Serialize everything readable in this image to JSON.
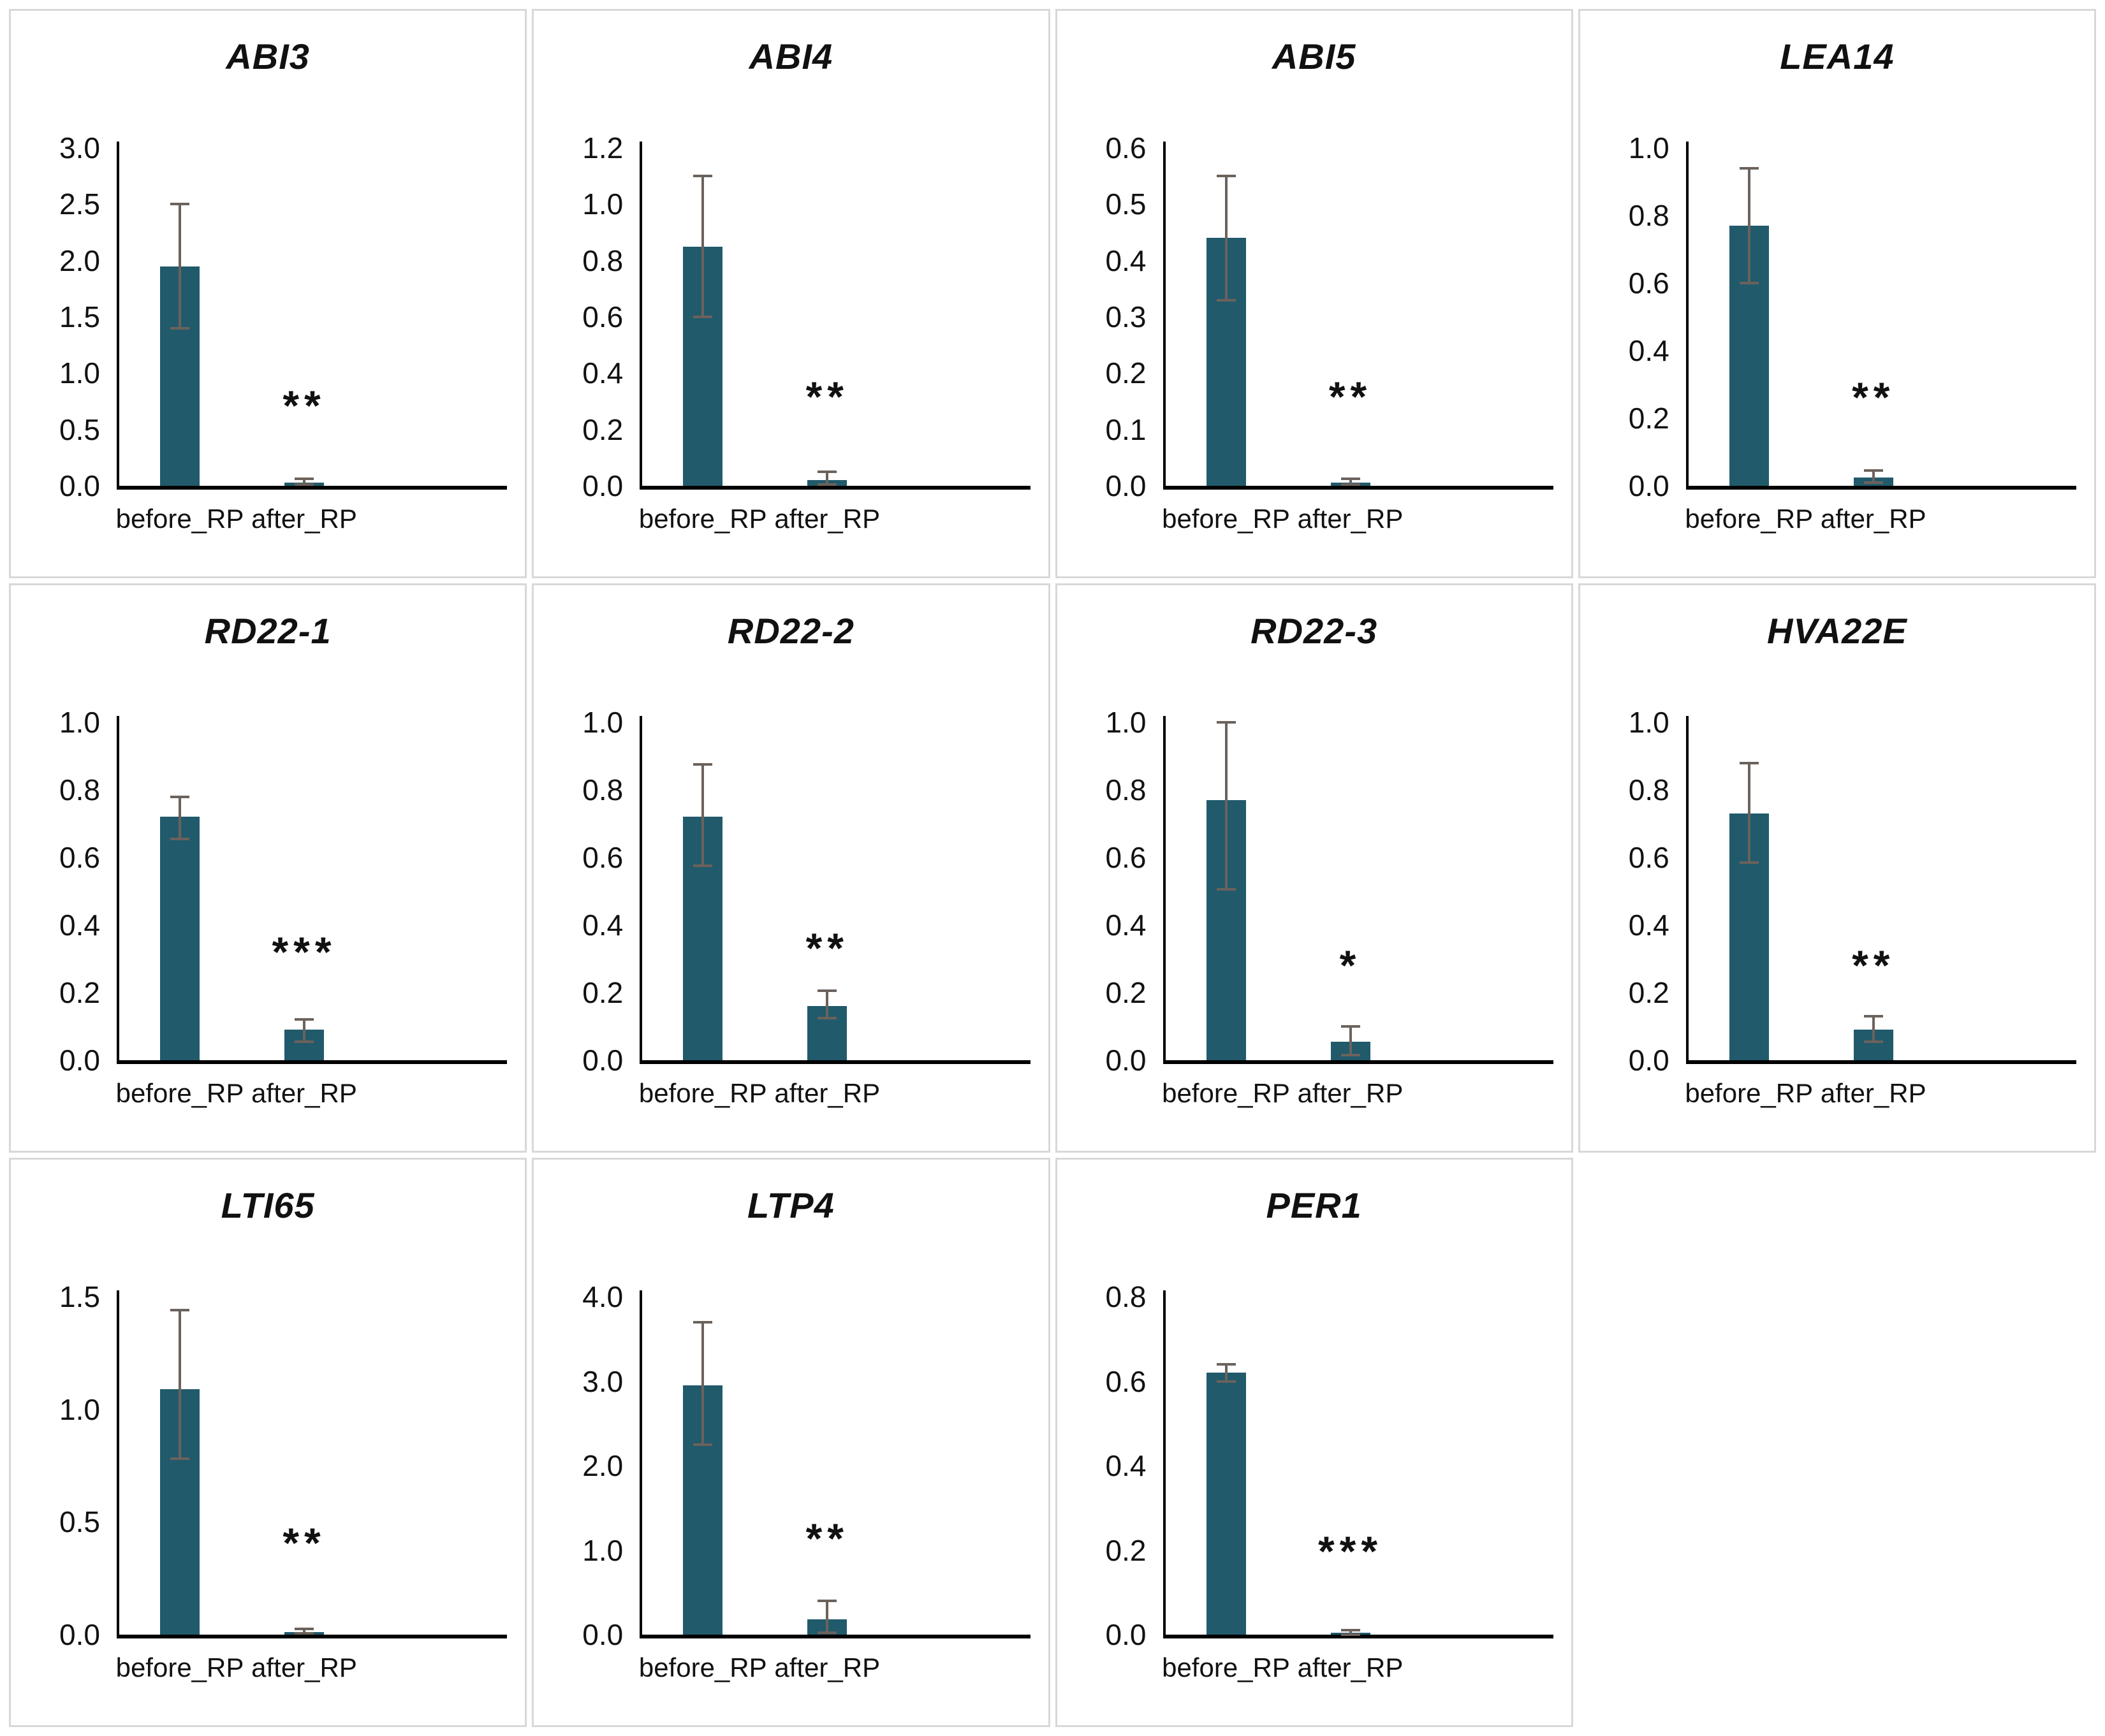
{
  "colors": {
    "bar": "#215a6b",
    "error_bar": "#6b625c",
    "axis": "#000000",
    "panel_border": "#d8d8d8",
    "text": "#111111"
  },
  "chart_data": [
    {
      "type": "bar",
      "title": "ABI3",
      "categories": [
        "before_RP",
        "after_RP"
      ],
      "values": [
        1.95,
        0.03
      ],
      "error_top": [
        2.5,
        0.06
      ],
      "error_bottom": [
        1.4,
        0.01
      ],
      "ylim": [
        0,
        3.0
      ],
      "yticks": [
        "0.0",
        "0.5",
        "1.0",
        "1.5",
        "2.0",
        "2.5",
        "3.0"
      ],
      "sig": "**",
      "sig_label_y": 0.5,
      "grid": "off",
      "legend": "none"
    },
    {
      "type": "bar",
      "title": "ABI4",
      "categories": [
        "before_RP",
        "after_RP"
      ],
      "values": [
        0.85,
        0.02
      ],
      "error_top": [
        1.1,
        0.05
      ],
      "error_bottom": [
        0.6,
        0.005
      ],
      "ylim": [
        0,
        1.2
      ],
      "yticks": [
        "0.0",
        "0.2",
        "0.4",
        "0.6",
        "0.8",
        "1.0",
        "1.2"
      ],
      "sig": "**",
      "sig_label_y": 0.23,
      "grid": "off",
      "legend": "none"
    },
    {
      "type": "bar",
      "title": "ABI5",
      "categories": [
        "before_RP",
        "after_RP"
      ],
      "values": [
        0.44,
        0.006
      ],
      "error_top": [
        0.55,
        0.012
      ],
      "error_bottom": [
        0.33,
        0.002
      ],
      "ylim": [
        0,
        0.6
      ],
      "yticks": [
        "0.0",
        "0.1",
        "0.2",
        "0.3",
        "0.4",
        "0.5",
        "0.6"
      ],
      "sig": "**",
      "sig_label_y": 0.115,
      "grid": "off",
      "legend": "none"
    },
    {
      "type": "bar",
      "title": "LEA14",
      "categories": [
        "before_RP",
        "after_RP"
      ],
      "values": [
        0.77,
        0.025
      ],
      "error_top": [
        0.94,
        0.045
      ],
      "error_bottom": [
        0.6,
        0.01
      ],
      "ylim": [
        0,
        1.0
      ],
      "yticks": [
        "0.0",
        "0.2",
        "0.4",
        "0.6",
        "0.8",
        "1.0"
      ],
      "sig": "**",
      "sig_label_y": 0.19,
      "grid": "off",
      "legend": "none"
    },
    {
      "type": "bar",
      "title": "RD22-1",
      "categories": [
        "before_RP",
        "after_RP"
      ],
      "values": [
        0.72,
        0.09
      ],
      "error_top": [
        0.78,
        0.12
      ],
      "error_bottom": [
        0.655,
        0.055
      ],
      "ylim": [
        0,
        1.0
      ],
      "yticks": [
        "0.0",
        "0.2",
        "0.4",
        "0.6",
        "0.8",
        "1.0"
      ],
      "sig": "***",
      "sig_label_y": 0.25,
      "grid": "off",
      "legend": "none"
    },
    {
      "type": "bar",
      "title": "RD22-2",
      "categories": [
        "before_RP",
        "after_RP"
      ],
      "values": [
        0.72,
        0.16
      ],
      "error_top": [
        0.875,
        0.205
      ],
      "error_bottom": [
        0.575,
        0.125
      ],
      "ylim": [
        0,
        1.0
      ],
      "yticks": [
        "0.0",
        "0.2",
        "0.4",
        "0.6",
        "0.8",
        "1.0"
      ],
      "sig": "**",
      "sig_label_y": 0.26,
      "grid": "off",
      "legend": "none"
    },
    {
      "type": "bar",
      "title": "RD22-3",
      "categories": [
        "before_RP",
        "after_RP"
      ],
      "values": [
        0.77,
        0.055
      ],
      "error_top": [
        1.0,
        0.1
      ],
      "error_bottom": [
        0.505,
        0.015
      ],
      "ylim": [
        0,
        1.0
      ],
      "yticks": [
        "0.0",
        "0.2",
        "0.4",
        "0.6",
        "0.8",
        "1.0"
      ],
      "sig": "*",
      "sig_label_y": 0.21,
      "grid": "off",
      "legend": "none"
    },
    {
      "type": "bar",
      "title": "HVA22E",
      "categories": [
        "before_RP",
        "after_RP"
      ],
      "values": [
        0.73,
        0.09
      ],
      "error_top": [
        0.88,
        0.13
      ],
      "error_bottom": [
        0.585,
        0.055
      ],
      "ylim": [
        0,
        1.0
      ],
      "yticks": [
        "0.0",
        "0.2",
        "0.4",
        "0.6",
        "0.8",
        "1.0"
      ],
      "sig": "**",
      "sig_label_y": 0.21,
      "grid": "off",
      "legend": "none"
    },
    {
      "type": "bar",
      "title": "LTI65",
      "categories": [
        "before_RP",
        "after_RP"
      ],
      "values": [
        1.09,
        0.012
      ],
      "error_top": [
        1.44,
        0.025
      ],
      "error_bottom": [
        0.78,
        0.005
      ],
      "ylim": [
        0,
        1.5
      ],
      "yticks": [
        "0.0",
        "0.5",
        "1.0",
        "1.5"
      ],
      "sig": "**",
      "sig_label_y": 0.3,
      "grid": "off",
      "legend": "none"
    },
    {
      "type": "bar",
      "title": "LTP4",
      "categories": [
        "before_RP",
        "after_RP"
      ],
      "values": [
        2.95,
        0.18
      ],
      "error_top": [
        3.7,
        0.4
      ],
      "error_bottom": [
        2.25,
        0.02
      ],
      "ylim": [
        0,
        4.0
      ],
      "yticks": [
        "0.0",
        "1.0",
        "2.0",
        "3.0",
        "4.0"
      ],
      "sig": "**",
      "sig_label_y": 0.85,
      "grid": "off",
      "legend": "none"
    },
    {
      "type": "bar",
      "title": "PER1",
      "categories": [
        "before_RP",
        "after_RP"
      ],
      "values": [
        0.62,
        0.005
      ],
      "error_top": [
        0.64,
        0.01
      ],
      "error_bottom": [
        0.6,
        0.0
      ],
      "ylim": [
        0,
        0.8
      ],
      "yticks": [
        "0.0",
        "0.2",
        "0.4",
        "0.6",
        "0.8"
      ],
      "sig": "***",
      "sig_label_y": 0.14,
      "grid": "off",
      "legend": "none"
    }
  ]
}
